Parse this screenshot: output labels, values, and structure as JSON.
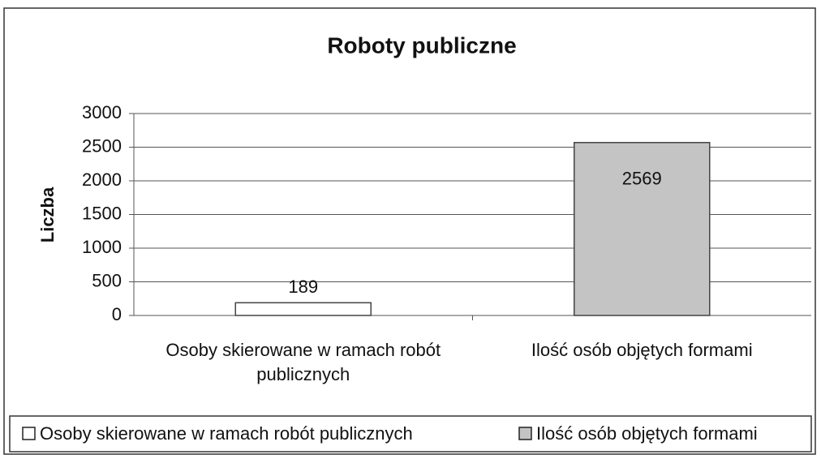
{
  "chart_data": {
    "type": "bar",
    "title": "Roboty publiczne",
    "y_label": "Liczba",
    "categories": [
      "Osoby skierowane w ramach robót publicznych",
      "Ilość osób objętych formami"
    ],
    "values": [
      189,
      2569
    ],
    "colors": [
      "#ffffff",
      "#c4c4c4"
    ],
    "ylim": [
      0,
      3000
    ],
    "yticks": [
      0,
      500,
      1000,
      1500,
      2000,
      2500,
      3000
    ],
    "grid": true,
    "legend": "bottom"
  }
}
